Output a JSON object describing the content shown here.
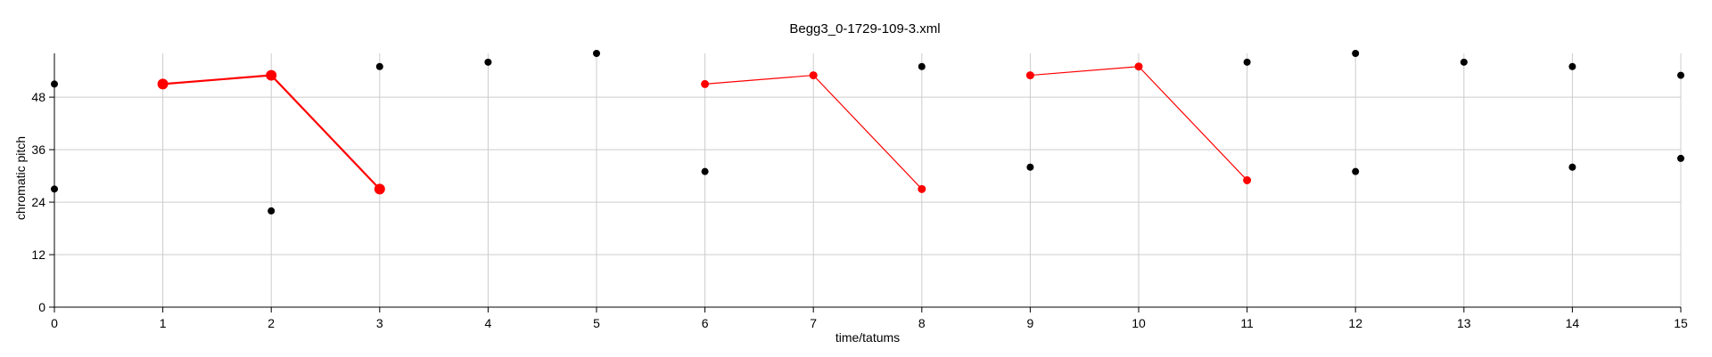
{
  "chart_data": {
    "type": "scatter",
    "title": "Begg3_0-1729-109-3.xml",
    "xlabel": "time/tatums",
    "ylabel": "chromatic pitch",
    "xlim": [
      0,
      15
    ],
    "ylim": [
      0,
      58
    ],
    "xticks": [
      0,
      1,
      2,
      3,
      4,
      5,
      6,
      7,
      8,
      9,
      10,
      11,
      12,
      13,
      14,
      15
    ],
    "yticks": [
      0,
      12,
      24,
      36,
      48
    ],
    "grid": true,
    "colors": {
      "notes": "#000000",
      "highlight": "#ff0000",
      "grid": "#cccccc"
    },
    "points": [
      {
        "x": 0,
        "y": 51
      },
      {
        "x": 0,
        "y": 27
      },
      {
        "x": 2,
        "y": 22
      },
      {
        "x": 3,
        "y": 55
      },
      {
        "x": 4,
        "y": 56
      },
      {
        "x": 5,
        "y": 58
      },
      {
        "x": 6,
        "y": 31
      },
      {
        "x": 8,
        "y": 55
      },
      {
        "x": 9,
        "y": 32
      },
      {
        "x": 11,
        "y": 56
      },
      {
        "x": 12,
        "y": 58
      },
      {
        "x": 12,
        "y": 31
      },
      {
        "x": 13,
        "y": 56
      },
      {
        "x": 14,
        "y": 55
      },
      {
        "x": 14,
        "y": 32
      },
      {
        "x": 15,
        "y": 53
      },
      {
        "x": 15,
        "y": 34
      }
    ],
    "highlighted_segments": [
      {
        "emphasis": "strong",
        "points": [
          {
            "x": 1,
            "y": 51
          },
          {
            "x": 2,
            "y": 53
          },
          {
            "x": 3,
            "y": 27
          }
        ]
      },
      {
        "emphasis": "normal",
        "points": [
          {
            "x": 6,
            "y": 51
          },
          {
            "x": 7,
            "y": 53
          },
          {
            "x": 8,
            "y": 27
          }
        ]
      },
      {
        "emphasis": "normal",
        "points": [
          {
            "x": 9,
            "y": 53
          },
          {
            "x": 10,
            "y": 55
          },
          {
            "x": 11,
            "y": 29
          }
        ]
      }
    ]
  }
}
